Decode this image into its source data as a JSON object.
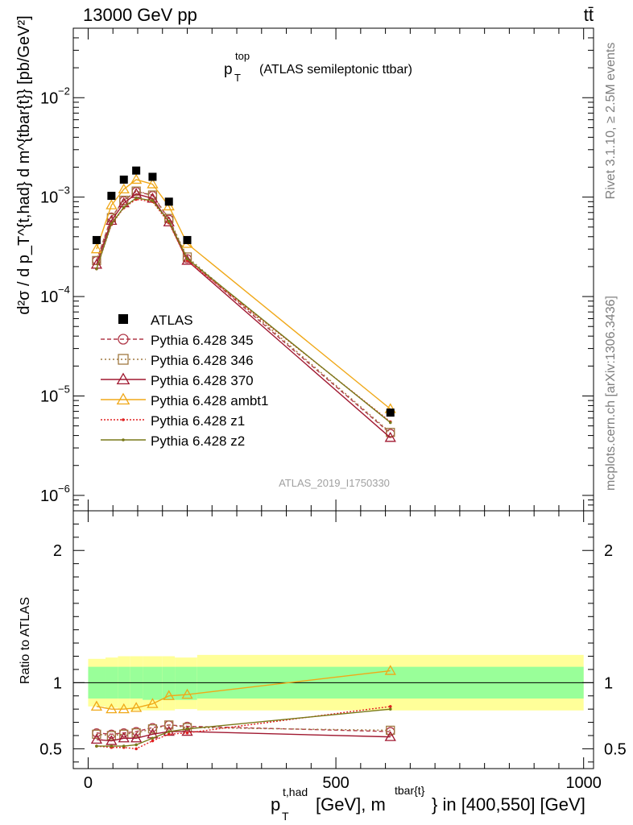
{
  "header": {
    "energy": "13000 GeV pp",
    "process": "tt̄",
    "side_rivet": "Rivet 3.1.10, ≥ 2.5M events",
    "side_mcplots": "mcplots.cern.ch [arXiv:1306.3436]",
    "analysis_id": "ATLAS_2019_I1750330"
  },
  "chart_data": {
    "type": "scatter",
    "title": "p_T^top (ATLAS semileptonic ttbar)",
    "title_main": "p",
    "title_sub": "T",
    "title_sup": "top",
    "title_rest": "(ATLAS semileptonic ttbar)",
    "xlabel": "p_T^{t,had} [GeV], m^{tbar{t}} in [400,550] [GeV]",
    "xlabel_p": "p",
    "xlabel_sub": "T",
    "xlabel_sup": "t,had",
    "xlabel_mid": " [GeV], m",
    "xlabel_sup2": "tbar{t}",
    "xlabel_end": "} in [400,550] [GeV]",
    "ylabel": "d²σ / d p_T^{t,had} d m^{tbar{t}} [pb/GeV²]",
    "ylabel_ratio": "Ratio to ATLAS",
    "xlim": [
      -30,
      1020
    ],
    "ylim": [
      7e-07,
      0.05
    ],
    "ylog": true,
    "ratio_ylim": [
      0.35,
      2.3
    ],
    "x_ticks": [
      0,
      500,
      1000
    ],
    "y_ticks": [
      1e-06,
      1e-05,
      0.0001,
      0.001,
      0.01
    ],
    "y_tick_labels": [
      {
        "base": "10",
        "exp": "−6"
      },
      {
        "base": "10",
        "exp": "−5"
      },
      {
        "base": "10",
        "exp": "−4"
      },
      {
        "base": "10",
        "exp": "−3"
      },
      {
        "base": "10",
        "exp": "−2"
      }
    ],
    "ratio_ticks": [
      0.5,
      1,
      2
    ],
    "ratio_tick_labels": [
      "0.5",
      "1",
      "2"
    ],
    "x_tick_labels": [
      "0",
      "500",
      "1000"
    ],
    "x": [
      17,
      47,
      72,
      97,
      130,
      163,
      200,
      610
    ],
    "bins": [
      [
        0,
        35
      ],
      [
        35,
        60
      ],
      [
        60,
        85
      ],
      [
        85,
        110
      ],
      [
        110,
        150
      ],
      [
        150,
        175
      ],
      [
        175,
        220
      ],
      [
        220,
        1000
      ]
    ],
    "data": {
      "name": "ATLAS",
      "values": [
        0.00037,
        0.00103,
        0.0015,
        0.00185,
        0.0016,
        0.0009,
        0.00037,
        6.8e-06
      ]
    },
    "bands": {
      "stat": [
        [
          0.88,
          1.12
        ],
        [
          0.88,
          1.12
        ],
        [
          0.88,
          1.12
        ],
        [
          0.88,
          1.12
        ],
        [
          0.87,
          1.12
        ],
        [
          0.87,
          1.12
        ],
        [
          0.87,
          1.12
        ],
        [
          0.88,
          1.12
        ]
      ],
      "total": [
        [
          0.82,
          1.18
        ],
        [
          0.81,
          1.19
        ],
        [
          0.8,
          1.2
        ],
        [
          0.79,
          1.2
        ],
        [
          0.79,
          1.2
        ],
        [
          0.79,
          1.2
        ],
        [
          0.8,
          1.19
        ],
        [
          0.79,
          1.21
        ]
      ]
    },
    "series": [
      {
        "name": "Pythia 6.428 345",
        "color": "#b03848",
        "marker": "circle",
        "dash": "5,3",
        "values": [
          0.00023,
          0.00063,
          0.00092,
          0.00114,
          0.00104,
          0.0006,
          0.00024,
          4.2e-06
        ],
        "ratio": [
          0.62,
          0.61,
          0.62,
          0.63,
          0.66,
          0.68,
          0.67,
          0.63
        ]
      },
      {
        "name": "Pythia 6.428 346",
        "color": "#a07840",
        "marker": "square",
        "dash": "2,3",
        "values": [
          0.00023,
          0.00062,
          0.00093,
          0.00115,
          0.00105,
          0.00061,
          0.00025,
          4.3e-06
        ],
        "ratio": [
          0.61,
          0.6,
          0.61,
          0.62,
          0.65,
          0.68,
          0.66,
          0.64
        ]
      },
      {
        "name": "Pythia 6.428 370",
        "color": "#a01830",
        "marker": "triangle",
        "dash": "",
        "values": [
          0.00021,
          0.00058,
          0.00087,
          0.00108,
          0.00097,
          0.00056,
          0.00023,
          3.8e-06
        ],
        "ratio": [
          0.57,
          0.56,
          0.58,
          0.58,
          0.61,
          0.63,
          0.63,
          0.59
        ]
      },
      {
        "name": "Pythia 6.428 ambt1",
        "color": "#f0a818",
        "marker": "triangle",
        "dash": "",
        "values": [
          0.0003,
          0.00083,
          0.0012,
          0.0015,
          0.00135,
          0.00081,
          0.00034,
          7.4e-06
        ],
        "ratio": [
          0.82,
          0.8,
          0.8,
          0.81,
          0.84,
          0.9,
          0.91,
          1.09
        ]
      },
      {
        "name": "Pythia 6.428 z1",
        "color": "#e02020",
        "marker": "dot",
        "dash": "2,2",
        "values": [
          0.00019,
          0.00053,
          0.00078,
          0.00095,
          0.0009,
          0.00055,
          0.00023,
          5.5e-06
        ],
        "ratio": [
          0.52,
          0.51,
          0.51,
          0.5,
          0.56,
          0.61,
          0.62,
          0.82
        ]
      },
      {
        "name": "Pythia 6.428 z2",
        "color": "#787818",
        "marker": "dot",
        "dash": "",
        "values": [
          0.00019,
          0.00054,
          0.00079,
          0.00098,
          0.00092,
          0.00057,
          0.00024,
          5.4e-06
        ],
        "ratio": [
          0.52,
          0.52,
          0.52,
          0.53,
          0.58,
          0.63,
          0.65,
          0.8
        ]
      }
    ]
  }
}
